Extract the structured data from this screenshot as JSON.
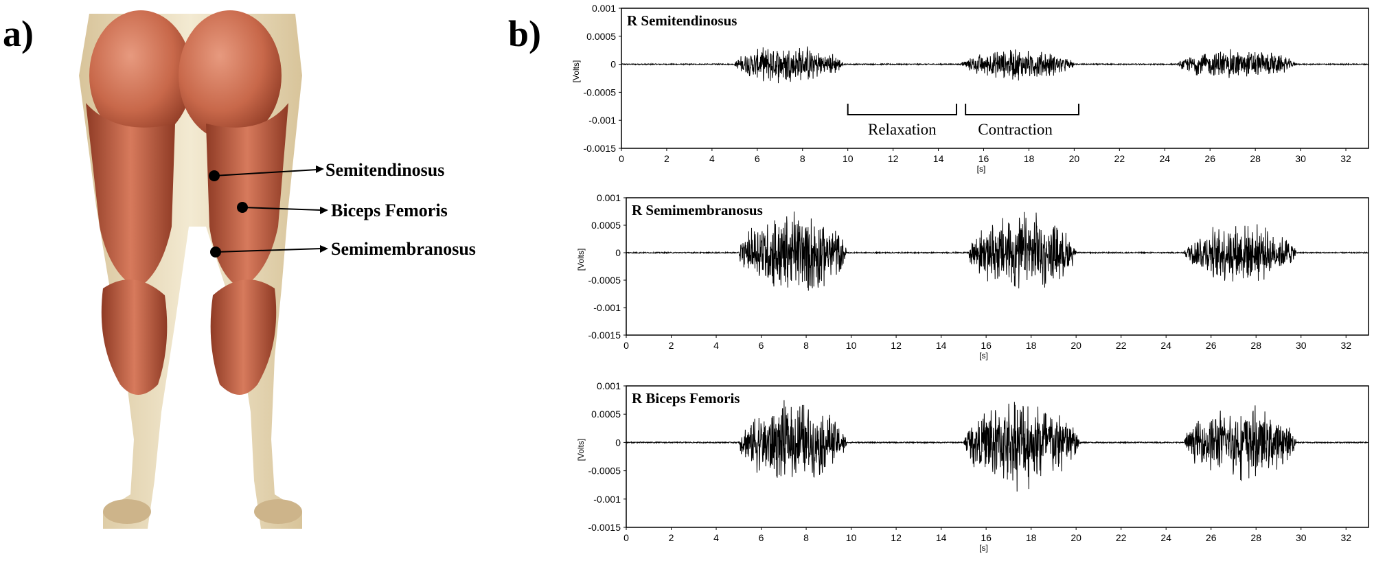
{
  "panel_labels": {
    "a": "a)",
    "b": "b)"
  },
  "anatomy": {
    "labels": [
      "Semitendinosus",
      "Biceps Femoris",
      "Semimembranosus"
    ],
    "colors": {
      "muscle": "#c8684a",
      "muscle_dark": "#8f3b25",
      "tendon": "#efe3c4",
      "skin_shadow": "#d8c49a"
    }
  },
  "annotations": {
    "relaxation": "Relaxation",
    "contraction": "Contraction"
  },
  "chart_data": [
    {
      "type": "line",
      "title": "R Semitendinosus",
      "xlabel": "[s]",
      "ylabel": "[Volts]",
      "xlim": [
        0,
        33
      ],
      "ylim": [
        -0.0015,
        0.001
      ],
      "xticks": [
        "0",
        "2",
        "4",
        "6",
        "8",
        "10",
        "12",
        "14",
        "16",
        "18",
        "20",
        "22",
        "24",
        "26",
        "28",
        "30",
        "32"
      ],
      "yticks": [
        "0.001",
        "0.0005",
        "0",
        "-0.0005",
        "-0.001",
        "-0.0015"
      ],
      "bursts": [
        {
          "start": 5.0,
          "end": 9.8,
          "peak": 0.00038
        },
        {
          "start": 15.0,
          "end": 20.0,
          "peak": 0.0003
        },
        {
          "start": 24.6,
          "end": 29.8,
          "peak": 0.0003
        }
      ],
      "baseline_noise": 1e-05,
      "color": "#000000"
    },
    {
      "type": "line",
      "title": "R Semimembranosus",
      "xlabel": "[s]",
      "ylabel": "[Volts]",
      "xlim": [
        0,
        33
      ],
      "ylim": [
        -0.0015,
        0.001
      ],
      "xticks": [
        "0",
        "2",
        "4",
        "6",
        "8",
        "10",
        "12",
        "14",
        "16",
        "18",
        "20",
        "22",
        "24",
        "26",
        "28",
        "30",
        "32"
      ],
      "yticks": [
        "0.001",
        "0.0005",
        "0",
        "-0.0005",
        "-0.001",
        "-0.0015"
      ],
      "bursts": [
        {
          "start": 5.0,
          "end": 9.8,
          "peak": 0.00085
        },
        {
          "start": 15.2,
          "end": 20.0,
          "peak": 0.0008
        },
        {
          "start": 24.8,
          "end": 29.8,
          "peak": 0.0006
        }
      ],
      "baseline_noise": 1e-05,
      "color": "#000000"
    },
    {
      "type": "line",
      "title": "R Biceps Femoris",
      "xlabel": "[s]",
      "ylabel": "[Volts]",
      "xlim": [
        0,
        33
      ],
      "ylim": [
        -0.0015,
        0.001
      ],
      "xticks": [
        "0",
        "2",
        "4",
        "6",
        "8",
        "10",
        "12",
        "14",
        "16",
        "18",
        "20",
        "22",
        "24",
        "26",
        "28",
        "30",
        "32"
      ],
      "yticks": [
        "0.001",
        "0.0005",
        "0",
        "-0.0005",
        "-0.001",
        "-0.0015"
      ],
      "bursts": [
        {
          "start": 5.0,
          "end": 9.8,
          "peak": 0.0008
        },
        {
          "start": 15.0,
          "end": 20.2,
          "peak": 0.0009
        },
        {
          "start": 24.8,
          "end": 29.8,
          "peak": 0.0007
        }
      ],
      "baseline_noise": 1e-05,
      "color": "#000000"
    }
  ],
  "relaxation_span": [
    10,
    14.8
  ],
  "contraction_span": [
    15.2,
    20.2
  ]
}
